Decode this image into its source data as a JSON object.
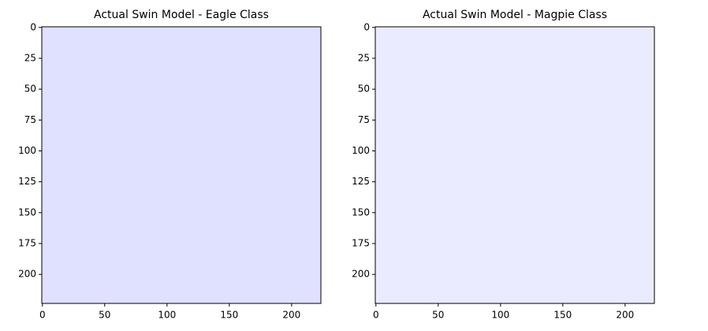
{
  "chart_data": [
    {
      "type": "heatmap",
      "title": "Actual Swin Model - Eagle Class",
      "color": "#e0e0ff",
      "xlim": [
        -0.5,
        223.5
      ],
      "ylim": [
        223.5,
        -0.5
      ],
      "xticks": [
        0,
        50,
        100,
        150,
        200
      ],
      "yticks": [
        0,
        25,
        50,
        75,
        100,
        125,
        150,
        175,
        200
      ]
    },
    {
      "type": "heatmap",
      "title": "Actual Swin Model - Magpie Class",
      "color": "#ebebff",
      "xlim": [
        -0.5,
        223.5
      ],
      "ylim": [
        223.5,
        -0.5
      ],
      "xticks": [
        0,
        50,
        100,
        150,
        200
      ],
      "yticks": [
        0,
        25,
        50,
        75,
        100,
        125,
        150,
        175,
        200
      ]
    }
  ]
}
